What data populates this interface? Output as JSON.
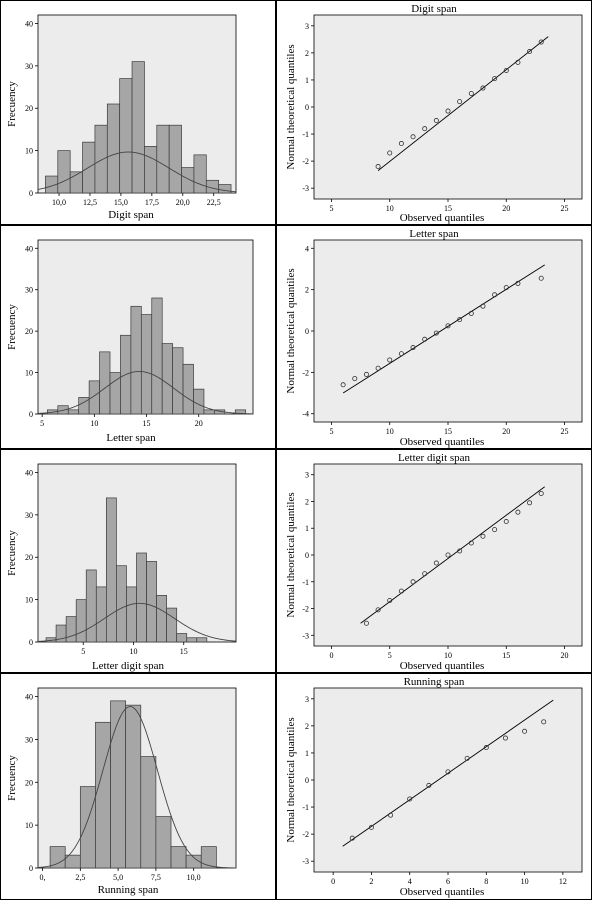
{
  "chart_data": [
    {
      "type": "bar",
      "chart_id": "hist-digit",
      "xlabel": "Digit span",
      "ylabel": "Frecuency",
      "xlim": [
        8.3,
        24.3
      ],
      "ylim": [
        0,
        42
      ],
      "yticks": [
        0,
        10,
        20,
        30,
        40
      ],
      "xticks": [
        10,
        12.5,
        15,
        17.5,
        20,
        22.5
      ],
      "xtick_labels": [
        "10,0",
        "12,5",
        "15,0",
        "17,5",
        "20,0",
        "22,5"
      ],
      "bin_start": 8.9,
      "bin_width": 1.0,
      "values": [
        4,
        10,
        5,
        12,
        16,
        21,
        27,
        31,
        11,
        16,
        16,
        6,
        9,
        3,
        2
      ],
      "curve": {
        "mean": 15.6,
        "sd": 3.3,
        "scale": 80
      }
    },
    {
      "type": "scatter",
      "chart_id": "qq-digit",
      "title": "Digit span",
      "xlabel": "Observed quantiles",
      "ylabel": "Normal theoretical quantiles",
      "xlim": [
        3.5,
        26.5
      ],
      "ylim": [
        -3.4,
        3.4
      ],
      "xticks": [
        5,
        10,
        15,
        20,
        25
      ],
      "yticks": [
        -3,
        -2,
        -1,
        0,
        1,
        2,
        3
      ],
      "points": [
        [
          9,
          -2.2
        ],
        [
          10,
          -1.7
        ],
        [
          11,
          -1.35
        ],
        [
          12,
          -1.1
        ],
        [
          13,
          -0.8
        ],
        [
          14,
          -0.5
        ],
        [
          15,
          -0.15
        ],
        [
          16,
          0.2
        ],
        [
          17,
          0.5
        ],
        [
          18,
          0.7
        ],
        [
          19,
          1.05
        ],
        [
          20,
          1.35
        ],
        [
          21,
          1.65
        ],
        [
          22,
          2.05
        ],
        [
          23,
          2.4
        ]
      ],
      "line": [
        [
          9,
          -2.35
        ],
        [
          23.6,
          2.6
        ]
      ]
    },
    {
      "type": "bar",
      "chart_id": "hist-letter",
      "xlabel": "Letter span",
      "ylabel": "Frecuency",
      "xlim": [
        4.6,
        25.2
      ],
      "ylim": [
        0,
        42
      ],
      "yticks": [
        0,
        10,
        20,
        30,
        40
      ],
      "xticks": [
        5,
        10,
        15,
        20
      ],
      "xtick_labels": [
        "5",
        "10",
        "15",
        "20"
      ],
      "bin_start": 5.5,
      "bin_width": 1.0,
      "values": [
        1,
        2,
        1,
        4,
        8,
        15,
        10,
        19,
        26,
        24,
        28,
        17,
        16,
        12,
        6,
        1,
        1,
        0,
        1
      ],
      "curve": {
        "mean": 14.3,
        "sd": 3.3,
        "scale": 85
      }
    },
    {
      "type": "scatter",
      "chart_id": "qq-letter",
      "title": "Letter span",
      "xlabel": "Observed quantiles",
      "ylabel": "Normal theoretical quantiles",
      "xlim": [
        3.5,
        26.5
      ],
      "ylim": [
        -4.4,
        4.4
      ],
      "xticks": [
        5,
        10,
        15,
        20,
        25
      ],
      "yticks": [
        -4,
        -2,
        0,
        2,
        4
      ],
      "points": [
        [
          6,
          -2.6
        ],
        [
          7,
          -2.3
        ],
        [
          8,
          -2.1
        ],
        [
          9,
          -1.8
        ],
        [
          10,
          -1.4
        ],
        [
          11,
          -1.1
        ],
        [
          12,
          -0.8
        ],
        [
          13,
          -0.4
        ],
        [
          14,
          -0.1
        ],
        [
          15,
          0.25
        ],
        [
          16,
          0.55
        ],
        [
          17,
          0.85
        ],
        [
          18,
          1.2
        ],
        [
          19,
          1.75
        ],
        [
          20,
          2.1
        ],
        [
          21,
          2.3
        ],
        [
          23,
          2.55
        ]
      ],
      "line": [
        [
          6,
          -3.0
        ],
        [
          23.3,
          3.2
        ]
      ]
    },
    {
      "type": "bar",
      "chart_id": "hist-lds",
      "xlabel": "Letter digit span",
      "ylabel": "Frecuency",
      "xlim": [
        0.5,
        20.2
      ],
      "ylim": [
        0,
        42
      ],
      "yticks": [
        0,
        10,
        20,
        30,
        40
      ],
      "xticks": [
        5,
        10,
        15
      ],
      "xtick_labels": [
        "5",
        "10",
        "15"
      ],
      "bin_start": 1.3,
      "bin_width": 1.0,
      "values": [
        1,
        4,
        6,
        10,
        17,
        13,
        34,
        18,
        13,
        21,
        19,
        11,
        8,
        2,
        1,
        1
      ],
      "curve": {
        "mean": 10.6,
        "sd": 3.5,
        "scale": 80
      }
    },
    {
      "type": "scatter",
      "chart_id": "qq-lds",
      "title": "Letter digit span",
      "xlabel": "Observed quantiles",
      "ylabel": "Normal theoretical quantiles",
      "xlim": [
        -1.5,
        21.5
      ],
      "ylim": [
        -3.4,
        3.4
      ],
      "xticks": [
        0,
        5,
        10,
        15,
        20
      ],
      "yticks": [
        -3,
        -2,
        -1,
        0,
        1,
        2,
        3
      ],
      "points": [
        [
          3,
          -2.55
        ],
        [
          4,
          -2.05
        ],
        [
          5,
          -1.7
        ],
        [
          6,
          -1.35
        ],
        [
          7,
          -1.0
        ],
        [
          8,
          -0.7
        ],
        [
          9,
          -0.3
        ],
        [
          10,
          0.0
        ],
        [
          11,
          0.15
        ],
        [
          12,
          0.45
        ],
        [
          13,
          0.7
        ],
        [
          14,
          0.95
        ],
        [
          15,
          1.25
        ],
        [
          16,
          1.6
        ],
        [
          17,
          1.95
        ],
        [
          18,
          2.3
        ]
      ],
      "line": [
        [
          2.5,
          -2.55
        ],
        [
          18.3,
          2.55
        ]
      ]
    },
    {
      "type": "bar",
      "chart_id": "hist-running",
      "xlabel": "Running span",
      "ylabel": "Frecuency",
      "xlim": [
        -0.3,
        12.8
      ],
      "ylim": [
        0,
        42
      ],
      "yticks": [
        0,
        10,
        20,
        30,
        40
      ],
      "xticks": [
        0,
        2.5,
        5,
        7.5,
        10
      ],
      "xtick_labels": [
        "0,",
        "2,5",
        "5,0",
        "7,5",
        "10,0"
      ],
      "bin_start": 0.5,
      "bin_width": 1.0,
      "values": [
        5,
        3,
        19,
        34,
        39,
        38,
        26,
        12,
        5,
        3,
        5
      ],
      "curve": {
        "mean": 5.8,
        "sd": 1.8,
        "scale": 170
      }
    },
    {
      "type": "scatter",
      "chart_id": "qq-running",
      "title": "Running span",
      "xlabel": "Observed quantiles",
      "ylabel": "Normal theoretical quantiles",
      "xlim": [
        -1,
        13
      ],
      "ylim": [
        -3.4,
        3.4
      ],
      "xticks": [
        0,
        2,
        4,
        6,
        8,
        10,
        12
      ],
      "yticks": [
        -3,
        -2,
        -1,
        0,
        1,
        2,
        3
      ],
      "points": [
        [
          1,
          -2.15
        ],
        [
          2,
          -1.75
        ],
        [
          3,
          -1.3
        ],
        [
          4,
          -0.7
        ],
        [
          5,
          -0.2
        ],
        [
          6,
          0.3
        ],
        [
          7,
          0.8
        ],
        [
          8,
          1.2
        ],
        [
          9,
          1.55
        ],
        [
          10,
          1.8
        ],
        [
          11,
          2.15
        ]
      ],
      "line": [
        [
          0.5,
          -2.45
        ],
        [
          11.5,
          2.95
        ]
      ]
    }
  ]
}
